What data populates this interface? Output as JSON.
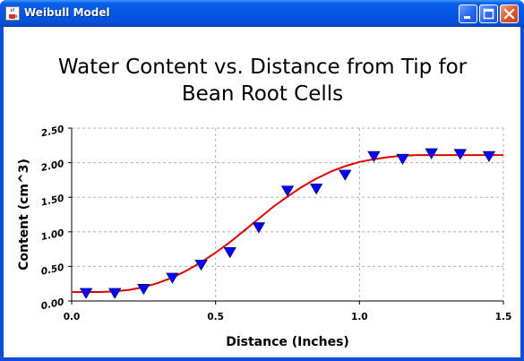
{
  "window": {
    "title": "Weibull Model",
    "icon": "java-coffee-icon",
    "controls": {
      "minimize": "minimize-icon",
      "maximize": "maximize-icon",
      "close": "close-icon"
    }
  },
  "colors": {
    "titlebar": "#0556e2",
    "fit_line": "#e00000",
    "markers": "#0000ff",
    "grid": "#b0b0b0"
  },
  "chart_data": {
    "type": "scatter",
    "title": "Water Content vs. Distance from Tip for Bean Root Cells",
    "title_lines": [
      "Water Content vs. Distance from Tip for",
      "Bean Root Cells"
    ],
    "xlabel": "Distance (Inches)",
    "ylabel": "Content (cm^3)",
    "xlim": [
      0,
      1.5
    ],
    "ylim": [
      0,
      2.5
    ],
    "x_ticks": [
      0,
      0.5,
      1,
      1.5
    ],
    "x_tick_labels": [
      "0.0",
      "0.5",
      "1.0",
      "1.5"
    ],
    "y_ticks": [
      0,
      0.5,
      1,
      1.5,
      2,
      2.5
    ],
    "y_tick_labels": [
      "0.00",
      "0.50",
      "1.00",
      "1.50",
      "2.00",
      "2.50"
    ],
    "grid": true,
    "series": [
      {
        "kind": "points",
        "marker": "triangle-down",
        "x": [
          0.05,
          0.15,
          0.25,
          0.35,
          0.45,
          0.55,
          0.65,
          0.75,
          0.85,
          0.95,
          1.05,
          1.15,
          1.25,
          1.35,
          1.45
        ],
        "y": [
          0.11,
          0.11,
          0.17,
          0.33,
          0.52,
          0.7,
          1.06,
          1.59,
          1.62,
          1.82,
          2.09,
          2.05,
          2.13,
          2.12,
          2.09
        ]
      },
      {
        "kind": "fitted-curve",
        "x": [
          0,
          0.05,
          0.1,
          0.15,
          0.2,
          0.25,
          0.3,
          0.35,
          0.4,
          0.45,
          0.5,
          0.55,
          0.6,
          0.65,
          0.7,
          0.75,
          0.8,
          0.85,
          0.9,
          0.95,
          1.0,
          1.05,
          1.1,
          1.15,
          1.2,
          1.25,
          1.3,
          1.35,
          1.4,
          1.45,
          1.5
        ],
        "y": [
          0.13,
          0.13,
          0.13,
          0.14,
          0.16,
          0.2,
          0.26,
          0.34,
          0.44,
          0.56,
          0.7,
          0.85,
          1.02,
          1.19,
          1.36,
          1.51,
          1.65,
          1.77,
          1.87,
          1.95,
          2.01,
          2.05,
          2.08,
          2.1,
          2.11,
          2.11,
          2.11,
          2.11,
          2.11,
          2.11,
          2.11
        ]
      }
    ]
  }
}
